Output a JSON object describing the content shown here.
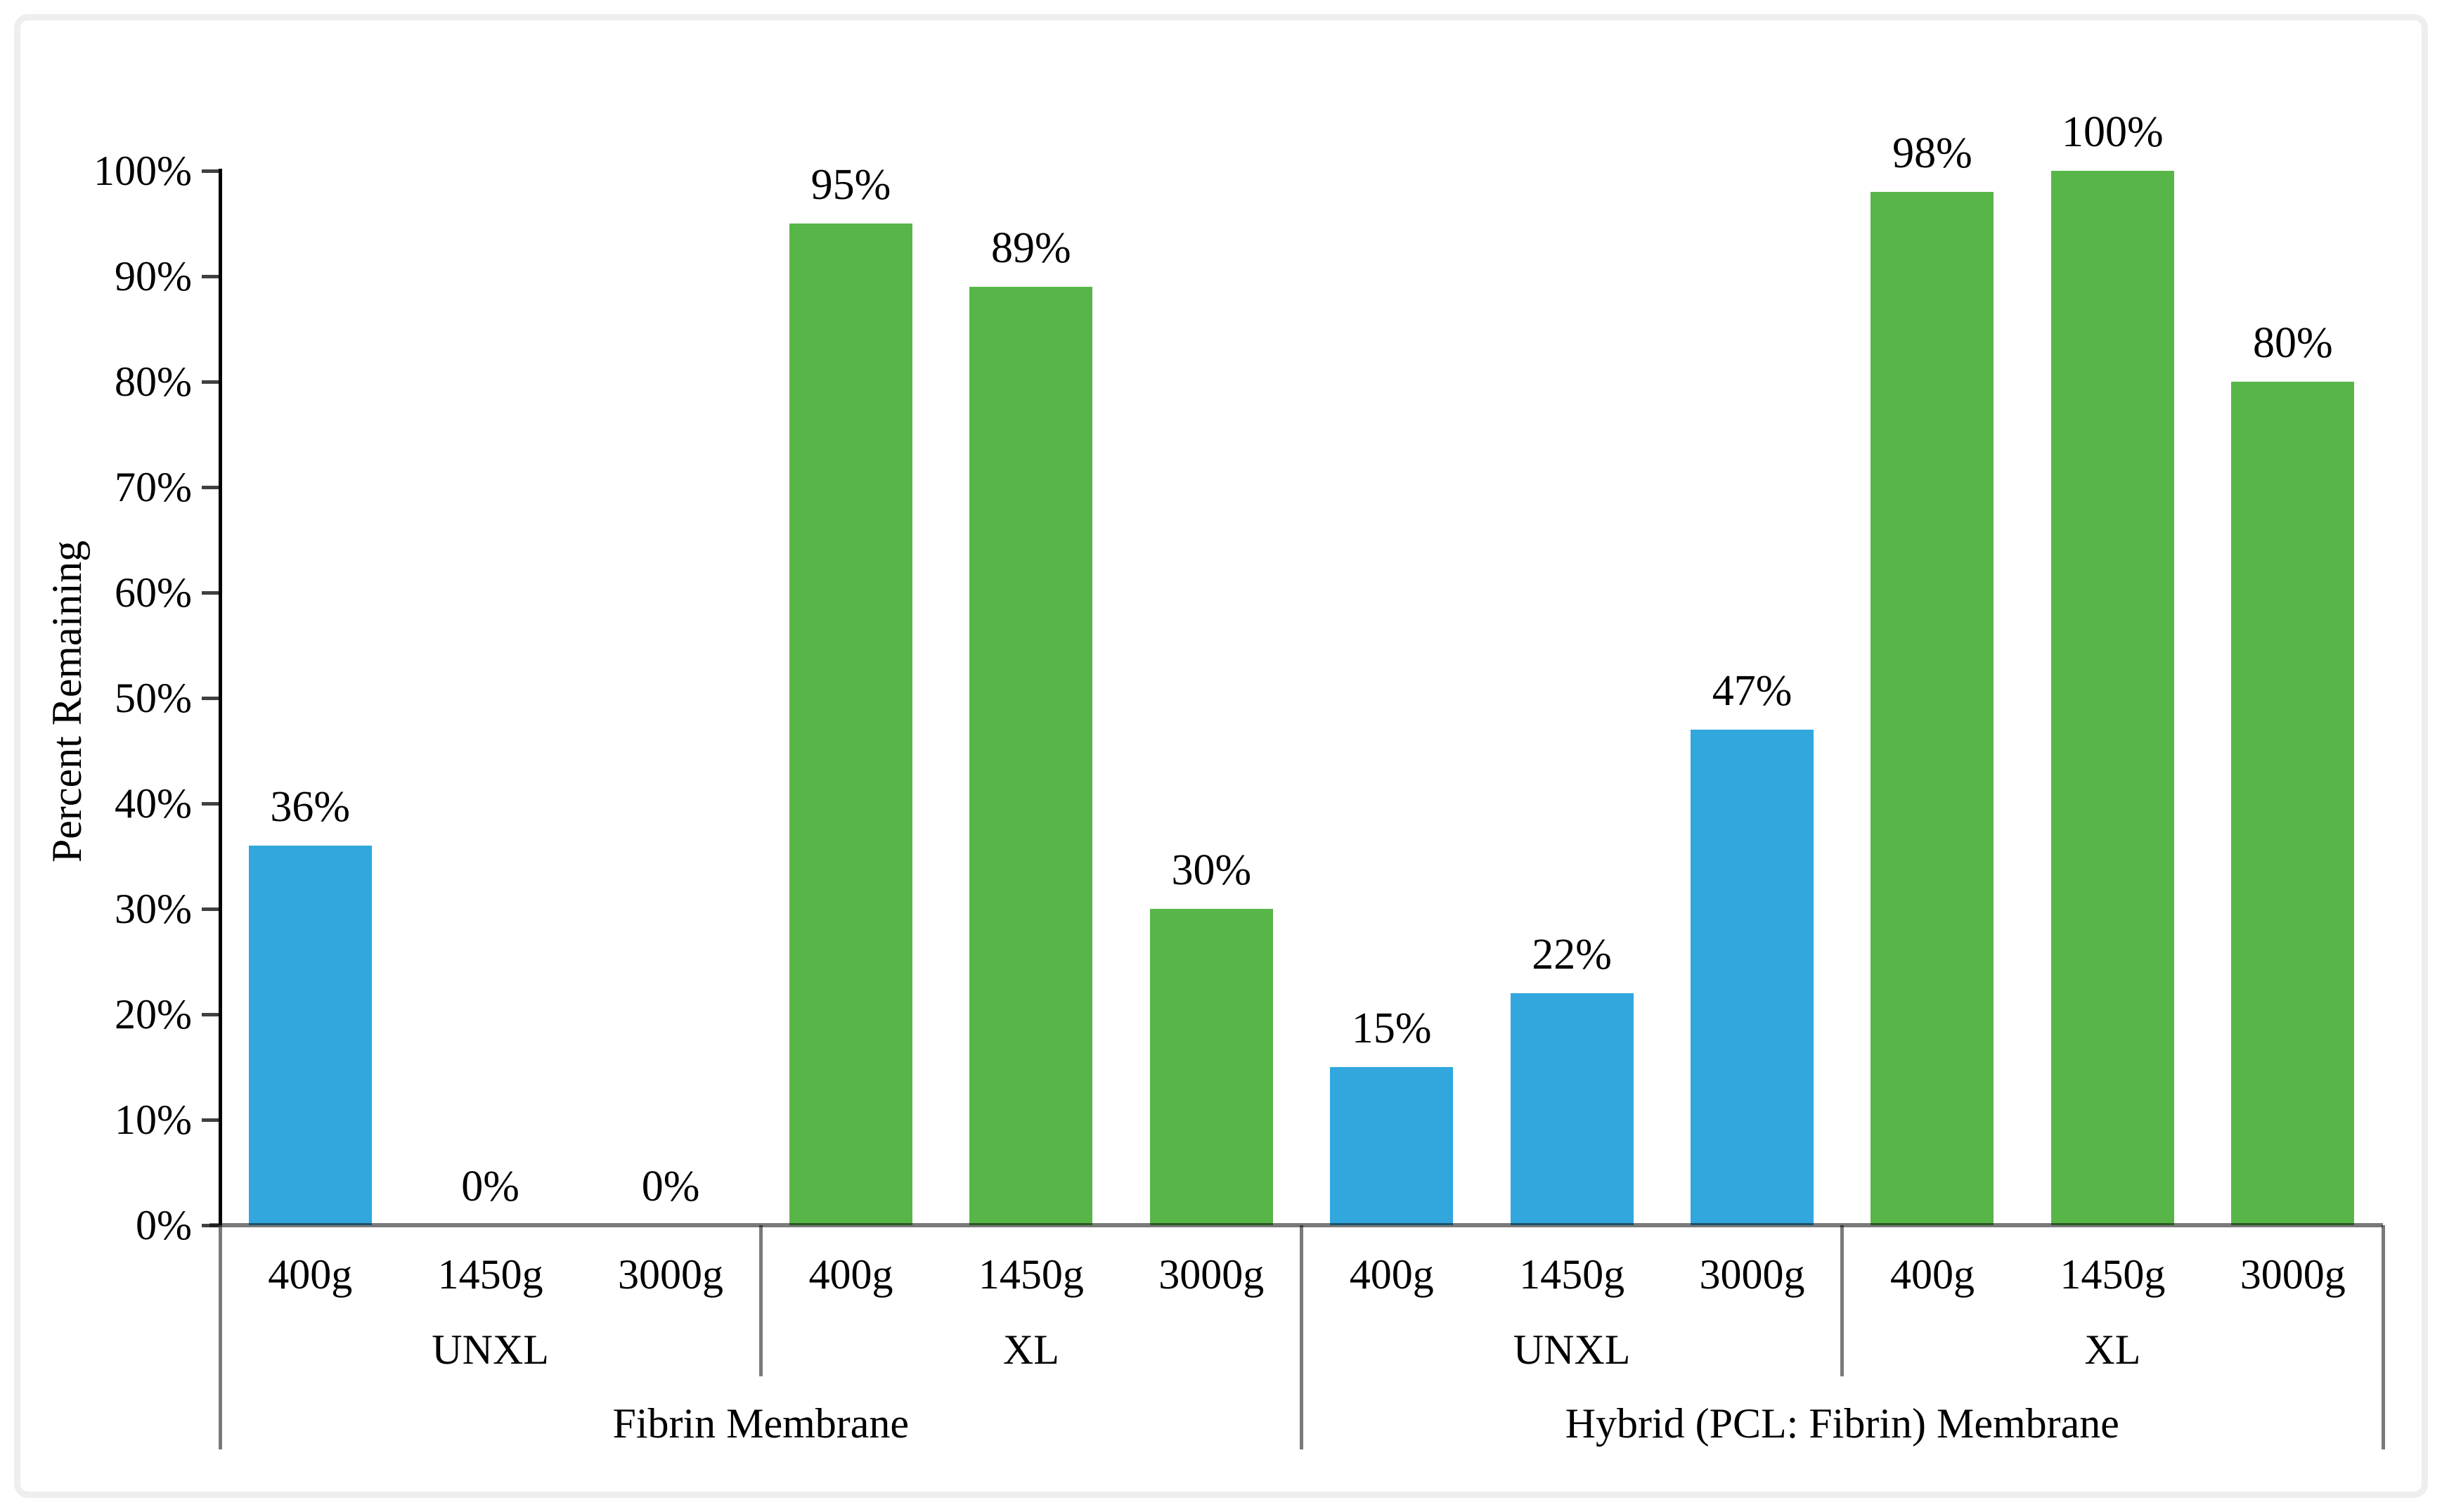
{
  "figure": {
    "background": "#ffffff",
    "frame_color": "#eeeeee"
  },
  "chart_data": {
    "type": "bar",
    "title": "",
    "xlabel": "",
    "ylabel": "Percent Remaining",
    "ylim": [
      0,
      100
    ],
    "ytick_step": 10,
    "ytick_labels": [
      "0%",
      "10%",
      "20%",
      "30%",
      "40%",
      "50%",
      "60%",
      "70%",
      "80%",
      "90%",
      "100%"
    ],
    "grid": false,
    "legend_position": "none",
    "series_colors": {
      "UNXL": "#31A7DD",
      "XL": "#58B649"
    },
    "axis_colors": {
      "y_axis": "#000000",
      "x_axis": "#7a7a7a",
      "tick": "#404040",
      "divider": "#7a7a7a"
    },
    "groups": [
      {
        "label": "Fibrin Membrane",
        "subgroups": [
          {
            "label": "UNXL",
            "series": "UNXL",
            "categories": [
              "400g",
              "1450g",
              "3000g"
            ],
            "values": [
              36,
              0,
              0
            ],
            "bar_labels": [
              "36%",
              "0%",
              "0%"
            ]
          },
          {
            "label": "XL",
            "series": "XL",
            "categories": [
              "400g",
              "1450g",
              "3000g"
            ],
            "values": [
              95,
              89,
              30
            ],
            "bar_labels": [
              "95%",
              "89%",
              "30%"
            ]
          }
        ]
      },
      {
        "label": "Hybrid (PCL: Fibrin) Membrane",
        "subgroups": [
          {
            "label": "UNXL",
            "series": "UNXL",
            "categories": [
              "400g",
              "1450g",
              "3000g"
            ],
            "values": [
              15,
              22,
              47
            ],
            "bar_labels": [
              "15%",
              "22%",
              "47%"
            ]
          },
          {
            "label": "XL",
            "series": "XL",
            "categories": [
              "400g",
              "1450g",
              "3000g"
            ],
            "values": [
              98,
              100,
              80
            ],
            "bar_labels": [
              "98%",
              "100%",
              "80%"
            ]
          }
        ]
      }
    ]
  }
}
